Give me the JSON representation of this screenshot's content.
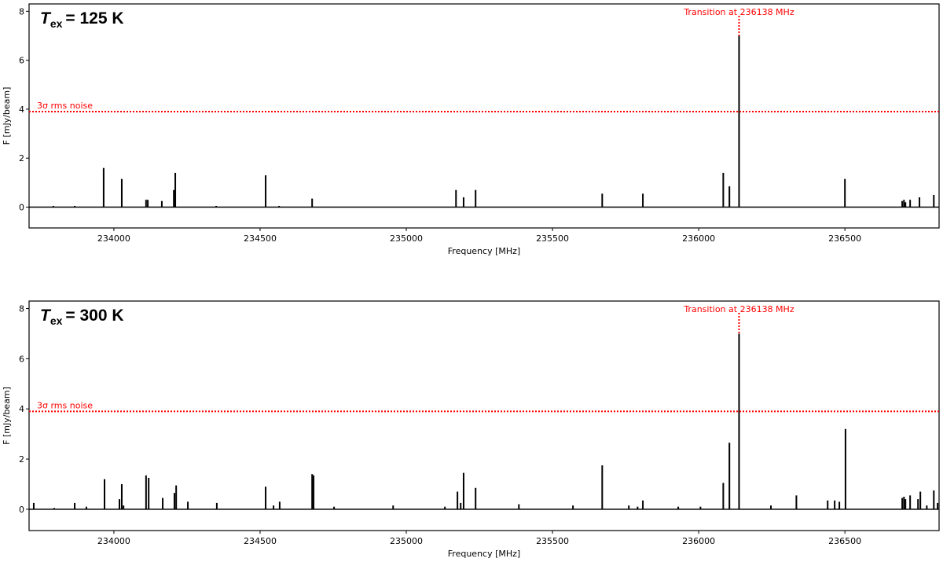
{
  "chart_data": [
    {
      "type": "stem",
      "title": {
        "symbol": "T",
        "subscript": "ex",
        "text": "= 125 K"
      },
      "xlabel": "Frequency [MHz]",
      "ylabel": "F [mJy/beam]",
      "color": "#000000",
      "xlim": [
        233710,
        236822
      ],
      "ylim": [
        -0.85,
        8.3
      ],
      "xticks": [
        234000,
        234500,
        235000,
        235500,
        236000,
        236500
      ],
      "yticks": [
        0,
        2,
        4,
        6,
        8
      ],
      "threshold": {
        "value": 3.9,
        "label": "3σ rms noise",
        "color": "#ff0000"
      },
      "annotation": {
        "text": "Transition at 236138 MHz",
        "x": 236138,
        "color": "#ff0000"
      },
      "x": [
        233793,
        233866,
        233965,
        234027,
        234110,
        234116,
        234164,
        234205,
        234210,
        234350,
        234519,
        234565,
        234678,
        235170,
        235196,
        235237,
        235670,
        235809,
        236084,
        236105,
        236138,
        236500,
        236696,
        236702,
        236707,
        236723,
        236755,
        236804
      ],
      "values": [
        0.05,
        0.05,
        1.6,
        1.15,
        0.3,
        0.3,
        0.25,
        0.7,
        1.4,
        0.05,
        1.3,
        0.05,
        0.35,
        0.7,
        0.4,
        0.7,
        0.55,
        0.55,
        1.4,
        0.85,
        7.0,
        1.15,
        0.25,
        0.3,
        0.2,
        0.3,
        0.4,
        0.5
      ]
    },
    {
      "type": "stem",
      "title": {
        "symbol": "T",
        "subscript": "ex",
        "text": "= 300 K"
      },
      "xlabel": "Frequency [MHz]",
      "ylabel": "F [mJy/beam]",
      "color": "#000000",
      "xlim": [
        233710,
        236822
      ],
      "ylim": [
        -0.85,
        8.3
      ],
      "xticks": [
        234000,
        234500,
        235000,
        235500,
        236000,
        236500
      ],
      "yticks": [
        0,
        2,
        4,
        6,
        8
      ],
      "threshold": {
        "value": 3.9,
        "label": "3σ rms noise",
        "color": "#ff0000"
      },
      "annotation": {
        "text": "Transition at 236138 MHz",
        "x": 236138,
        "color": "#ff0000"
      },
      "x": [
        233726,
        233796,
        233866,
        233906,
        233968,
        234019,
        234027,
        234033,
        234110,
        234119,
        234167,
        234207,
        234213,
        234253,
        234352,
        234519,
        234546,
        234567,
        234678,
        234683,
        234753,
        234955,
        235132,
        235175,
        235186,
        235196,
        235237,
        235385,
        235570,
        235670,
        235761,
        235791,
        235809,
        235930,
        236006,
        236084,
        236105,
        236138,
        236247,
        236334,
        236441,
        236465,
        236481,
        236502,
        236696,
        236702,
        236707,
        236723,
        236750,
        236758,
        236780,
        236804,
        236817
      ],
      "values": [
        0.25,
        0.05,
        0.25,
        0.1,
        1.2,
        0.4,
        1.0,
        0.15,
        1.35,
        1.25,
        0.45,
        0.65,
        0.95,
        0.3,
        0.25,
        0.9,
        0.15,
        0.3,
        1.4,
        1.35,
        0.1,
        0.15,
        0.1,
        0.7,
        0.25,
        1.45,
        0.85,
        0.2,
        0.15,
        1.75,
        0.15,
        0.1,
        0.35,
        0.1,
        0.1,
        1.05,
        2.65,
        7.0,
        0.15,
        0.55,
        0.35,
        0.35,
        0.3,
        3.2,
        0.45,
        0.5,
        0.4,
        0.55,
        0.4,
        0.7,
        0.15,
        0.75,
        0.25
      ]
    }
  ]
}
